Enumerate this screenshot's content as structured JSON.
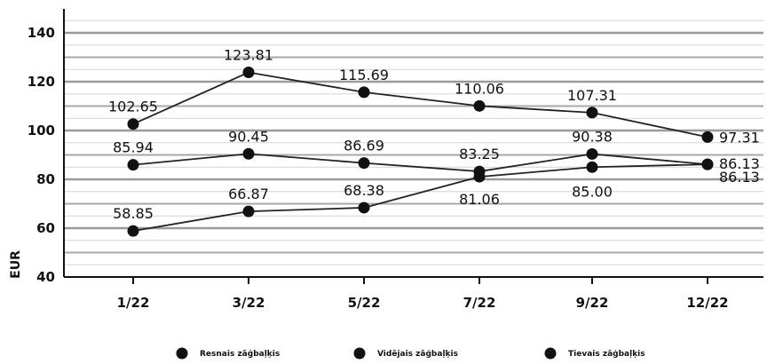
{
  "chart_data": {
    "type": "line",
    "title": "",
    "xlabel": "",
    "ylabel": "EUR",
    "categories": [
      "1/22",
      "3/22",
      "5/22",
      "7/22",
      "9/22",
      "12/22"
    ],
    "ylim": [
      40,
      150
    ],
    "yticks": [
      40,
      60,
      80,
      100,
      120,
      140
    ],
    "grid": true,
    "legend_position": "bottom",
    "series": [
      {
        "name": "Resnais zāģbaļķis",
        "values": [
          102.65,
          123.81,
          115.69,
          110.06,
          107.31,
          97.31
        ],
        "labels": [
          "102.65",
          "123.81",
          "115.69",
          "110.06",
          "107.31",
          "97.31"
        ]
      },
      {
        "name": "Vidējais zāģbaļķis",
        "values": [
          85.94,
          90.45,
          86.69,
          83.25,
          90.38,
          86.13
        ],
        "labels": [
          "85.94",
          "90.45",
          "86.69",
          "83.25",
          "90.38",
          "86.13"
        ]
      },
      {
        "name": "Tievais zāģbaļķis",
        "values": [
          58.85,
          66.87,
          68.38,
          81.06,
          85.0,
          86.13
        ],
        "labels": [
          "58.85",
          "66.87",
          "68.38",
          "81.06",
          "85.00",
          "86.13"
        ]
      }
    ],
    "colors": {
      "line": "#222222",
      "marker": "#111111",
      "grid": "#bdbdbd",
      "axis": "#111111"
    }
  }
}
